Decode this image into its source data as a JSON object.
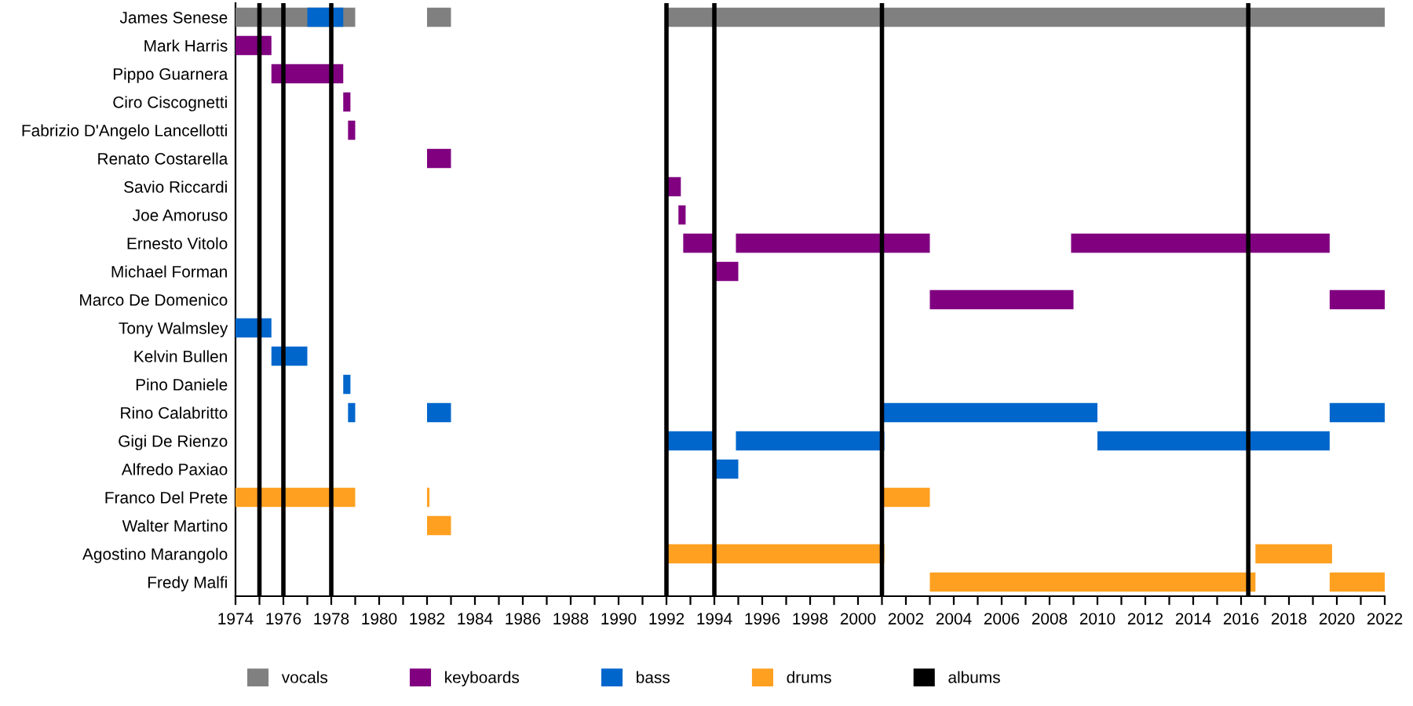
{
  "chart_data": {
    "type": "bar",
    "orientation": "horizontal",
    "legend": "bottom",
    "grid": false,
    "categories": [
      "James Senese",
      "Mark Harris",
      "Pippo Guarnera",
      "Ciro Ciscognetti",
      "Fabrizio D'Angelo Lancellotti",
      "Renato Costarella",
      "Savio Riccardi",
      "Joe Amoruso",
      "Ernesto Vitolo",
      "Michael Forman",
      "Marco De Domenico",
      "Tony Walmsley",
      "Kelvin Bullen",
      "Pino Daniele",
      "Rino Calabritto",
      "Gigi De Rienzo",
      "Alfredo Paxiao",
      "Franco Del Prete",
      "Walter Martino",
      "Agostino Marangolo",
      "Fredy Malfi"
    ],
    "xlim": [
      1974,
      2022
    ],
    "xticks": [
      1974,
      {
        "value": 1975,
        "label": null
      },
      1976,
      {
        "value": 1977,
        "label": null
      },
      1978,
      {
        "value": 1979,
        "label": null
      },
      1980,
      {
        "value": 1981,
        "label": null
      },
      1982,
      {
        "value": 1983,
        "label": null
      },
      1984,
      {
        "value": 1985,
        "label": null
      },
      1986,
      {
        "value": 1987,
        "label": null
      },
      1988,
      {
        "value": 1989,
        "label": null
      },
      1990,
      {
        "value": 1991,
        "label": null
      },
      1992,
      {
        "value": 1993,
        "label": null
      },
      1994,
      {
        "value": 1995,
        "label": null
      },
      1996,
      {
        "value": 1997,
        "label": null
      },
      1998,
      {
        "value": 1999,
        "label": null
      },
      2000,
      {
        "value": 2001,
        "label": null
      },
      2002,
      {
        "value": 2003,
        "label": null
      },
      2004,
      {
        "value": 2005,
        "label": null
      },
      2006,
      {
        "value": 2007,
        "label": null
      },
      2008,
      {
        "value": 2009,
        "label": null
      },
      2010,
      {
        "value": 2011,
        "label": null
      },
      2012,
      {
        "value": 2013,
        "label": null
      },
      2014,
      {
        "value": 2015,
        "label": null
      },
      2016,
      {
        "value": 2017,
        "label": null
      },
      2018,
      {
        "value": 2019,
        "label": null
      },
      2020,
      {
        "value": 2021,
        "label": null
      },
      2022
    ],
    "series": [
      {
        "name": "vocals",
        "color": "#808080",
        "base": [
          1974,
          null,
          null,
          null,
          null,
          null,
          null,
          null,
          null,
          null,
          null,
          null,
          null,
          null,
          null,
          null,
          null,
          null,
          null,
          null,
          null
        ],
        "values": [
          5,
          null,
          null,
          null,
          null,
          null,
          null,
          null,
          null,
          null,
          null,
          null,
          null,
          null,
          null,
          null,
          null,
          null,
          null,
          null,
          null
        ]
      },
      {
        "color": "#808080",
        "base": [
          1982,
          null,
          null,
          null,
          null,
          null,
          null,
          null,
          null,
          null,
          null,
          null,
          null,
          null,
          null,
          null,
          null,
          null,
          null,
          null,
          null
        ],
        "values": [
          1,
          null,
          null,
          null,
          null,
          null,
          null,
          null,
          null,
          null,
          null,
          null,
          null,
          null,
          null,
          null,
          null,
          null,
          null,
          null,
          null
        ]
      },
      {
        "color": "#808080",
        "base": [
          1992,
          null,
          null,
          null,
          null,
          null,
          null,
          null,
          null,
          null,
          null,
          null,
          null,
          null,
          null,
          null,
          null,
          null,
          null,
          null,
          null
        ],
        "values": [
          30,
          null,
          null,
          null,
          null,
          null,
          null,
          null,
          null,
          null,
          null,
          null,
          null,
          null,
          null,
          null,
          null,
          null,
          null,
          null,
          null
        ]
      },
      {
        "name": "keyboards",
        "color": "#800080",
        "base": [
          null,
          1974,
          1975.5,
          1978.5,
          1978.7,
          1982,
          1992,
          1992.5,
          1992.7,
          1994,
          2003,
          null,
          null,
          null,
          null,
          null,
          null,
          null,
          null,
          null,
          null
        ],
        "values": [
          null,
          1.5,
          3,
          0.3,
          0.3,
          1,
          0.6,
          0.3,
          1.3,
          1,
          6,
          null,
          null,
          null,
          null,
          null,
          null,
          null,
          null,
          null,
          null
        ]
      },
      {
        "color": "#800080",
        "base": [
          null,
          null,
          null,
          null,
          null,
          null,
          null,
          null,
          1994.9,
          null,
          2019.7,
          null,
          null,
          null,
          null,
          null,
          null,
          null,
          null,
          null,
          null
        ],
        "values": [
          null,
          null,
          null,
          null,
          null,
          null,
          null,
          null,
          8.1,
          null,
          2.3,
          null,
          null,
          null,
          null,
          null,
          null,
          null,
          null,
          null,
          null
        ]
      },
      {
        "color": "#800080",
        "base": [
          null,
          null,
          null,
          null,
          null,
          null,
          null,
          null,
          2008.9,
          null,
          null,
          null,
          null,
          null,
          null,
          null,
          null,
          null,
          null,
          null,
          null
        ],
        "values": [
          null,
          null,
          null,
          null,
          null,
          null,
          null,
          null,
          10.8,
          null,
          null,
          null,
          null,
          null,
          null,
          null,
          null,
          null,
          null,
          null,
          null
        ]
      },
      {
        "name": "bass",
        "color": "#0066cc",
        "base": [
          1977,
          null,
          null,
          null,
          null,
          null,
          null,
          null,
          null,
          null,
          null,
          1974,
          1975.5,
          1978.5,
          1978.7,
          1992,
          1994,
          null,
          null,
          null,
          null
        ],
        "values": [
          1.5,
          null,
          null,
          null,
          null,
          null,
          null,
          null,
          null,
          null,
          null,
          1.5,
          1.5,
          0.3,
          0.3,
          2,
          1,
          null,
          null,
          null,
          null
        ]
      },
      {
        "color": "#0066cc",
        "base": [
          null,
          null,
          null,
          null,
          null,
          null,
          null,
          null,
          null,
          null,
          null,
          null,
          null,
          null,
          1982,
          1994.9,
          null,
          null,
          null,
          null,
          null
        ],
        "values": [
          null,
          null,
          null,
          null,
          null,
          null,
          null,
          null,
          null,
          null,
          null,
          null,
          null,
          null,
          1,
          6.2,
          null,
          null,
          null,
          null,
          null
        ]
      },
      {
        "color": "#0066cc",
        "base": [
          null,
          null,
          null,
          null,
          null,
          null,
          null,
          null,
          null,
          null,
          null,
          null,
          null,
          null,
          2001,
          2010,
          null,
          null,
          null,
          null,
          null
        ],
        "values": [
          null,
          null,
          null,
          null,
          null,
          null,
          null,
          null,
          null,
          null,
          null,
          null,
          null,
          null,
          9,
          9.7,
          null,
          null,
          null,
          null,
          null
        ]
      },
      {
        "color": "#0066cc",
        "base": [
          null,
          null,
          null,
          null,
          null,
          null,
          null,
          null,
          null,
          null,
          null,
          null,
          null,
          null,
          2019.7,
          null,
          null,
          null,
          null,
          null,
          null
        ],
        "values": [
          null,
          null,
          null,
          null,
          null,
          null,
          null,
          null,
          null,
          null,
          null,
          null,
          null,
          null,
          2.3,
          null,
          null,
          null,
          null,
          null,
          null
        ]
      },
      {
        "name": "drums",
        "color": "#ffa020",
        "base": [
          null,
          null,
          null,
          null,
          null,
          null,
          null,
          null,
          null,
          null,
          null,
          null,
          null,
          null,
          null,
          null,
          null,
          1974,
          1982,
          1992,
          2003
        ],
        "values": [
          null,
          null,
          null,
          null,
          null,
          null,
          null,
          null,
          null,
          null,
          null,
          null,
          null,
          null,
          null,
          null,
          null,
          5,
          1,
          9.1,
          13.6
        ]
      },
      {
        "color": "#ffa020",
        "base": [
          null,
          null,
          null,
          null,
          null,
          null,
          null,
          null,
          null,
          null,
          null,
          null,
          null,
          null,
          null,
          null,
          null,
          1982,
          null,
          2016.6,
          2019.7
        ],
        "values": [
          null,
          null,
          null,
          null,
          null,
          null,
          null,
          null,
          null,
          null,
          null,
          null,
          null,
          null,
          null,
          null,
          null,
          0.1,
          null,
          3.2,
          2.3
        ]
      },
      {
        "color": "#ffa020",
        "base": [
          null,
          null,
          null,
          null,
          null,
          null,
          null,
          null,
          null,
          null,
          null,
          null,
          null,
          null,
          null,
          null,
          null,
          2001,
          null,
          null,
          null
        ],
        "values": [
          null,
          null,
          null,
          null,
          null,
          null,
          null,
          null,
          null,
          null,
          null,
          null,
          null,
          null,
          null,
          null,
          null,
          2,
          null,
          null,
          null
        ]
      }
    ],
    "ref_lines": [
      {
        "axis": "x",
        "value": 1975,
        "label": "albums",
        "color": "#000000"
      },
      {
        "axis": "x",
        "value": 1976,
        "color": "#000000"
      },
      {
        "axis": "x",
        "value": 1978,
        "color": "#000000"
      },
      {
        "axis": "x",
        "value": 1992,
        "color": "#000000"
      },
      {
        "axis": "x",
        "value": 1994,
        "color": "#000000"
      },
      {
        "axis": "x",
        "value": 2001,
        "color": "#000000"
      },
      {
        "axis": "x",
        "value": 2016.3,
        "color": "#000000"
      }
    ]
  }
}
